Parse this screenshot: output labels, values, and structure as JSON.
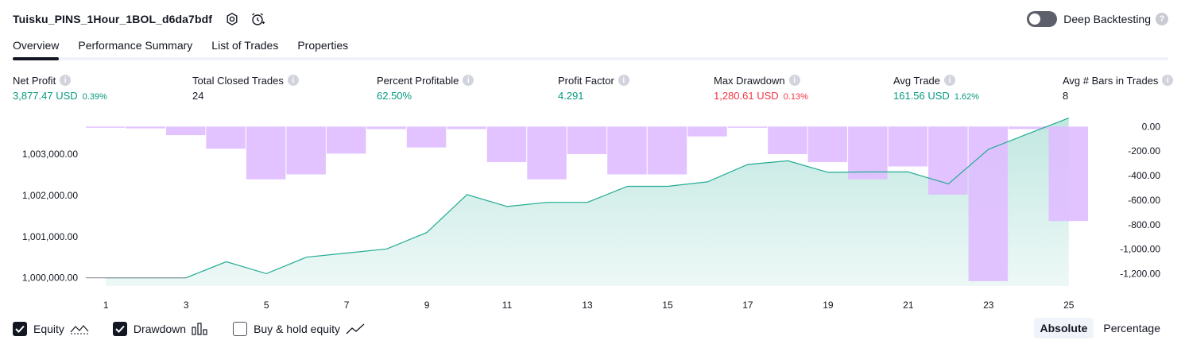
{
  "header": {
    "strategy_title": "Tuisku_PINS_1Hour_1BOL_d6da7bdf",
    "settings_icon": "gear-icon",
    "alert_icon": "alarm-clock-plus-icon"
  },
  "deep_backtesting": {
    "label": "Deep Backtesting",
    "enabled": false,
    "help_icon": "question-icon"
  },
  "tabs": [
    {
      "label": "Overview",
      "active": true
    },
    {
      "label": "Performance Summary",
      "active": false
    },
    {
      "label": "List of Trades",
      "active": false
    },
    {
      "label": "Properties",
      "active": false
    }
  ],
  "metrics": [
    {
      "label": "Net Profit",
      "value": "3,877.47 USD",
      "sub": "0.39%",
      "color": "green"
    },
    {
      "label": "Total Closed Trades",
      "value": "24",
      "sub": "",
      "color": "dark"
    },
    {
      "label": "Percent Profitable",
      "value": "62.50%",
      "sub": "",
      "color": "green"
    },
    {
      "label": "Profit Factor",
      "value": "4.291",
      "sub": "",
      "color": "green"
    },
    {
      "label": "Max Drawdown",
      "value": "1,280.61 USD",
      "sub": "0.13%",
      "color": "red"
    },
    {
      "label": "Avg Trade",
      "value": "161.56 USD",
      "sub": "1.62%",
      "color": "green"
    },
    {
      "label": "Avg # Bars in Trades",
      "value": "8",
      "sub": "",
      "color": "dark"
    }
  ],
  "colors": {
    "equity_line": "#22ab94",
    "drawdown_bar": "#dfbdff",
    "positive": "#089981",
    "negative": "#f23645"
  },
  "chart_data": {
    "type": "line+bar",
    "x": [
      1,
      2,
      3,
      4,
      5,
      6,
      7,
      8,
      9,
      10,
      11,
      12,
      13,
      14,
      15,
      16,
      17,
      18,
      19,
      20,
      21,
      22,
      23,
      24,
      25
    ],
    "x_tick_labels": [
      "1",
      "3",
      "5",
      "7",
      "9",
      "11",
      "13",
      "15",
      "17",
      "19",
      "21",
      "23",
      "25"
    ],
    "series": [
      {
        "type": "area",
        "axis": "left",
        "values": [
          1000000,
          1000000,
          1000000,
          1000390,
          1000100,
          1000500,
          1000600,
          1000700,
          1001100,
          1002020,
          1001730,
          1001830,
          1001830,
          1002220,
          1002220,
          1002330,
          1002750,
          1002840,
          1002560,
          1002570,
          1002570,
          1002280,
          1003120,
          1003500,
          1003877.47
        ]
      },
      {
        "type": "bar",
        "axis": "right",
        "values": [
          -10,
          -15,
          -70,
          -180,
          -430,
          -390,
          -220,
          -20,
          -170,
          -20,
          -290,
          -430,
          -225,
          -390,
          -390,
          -80,
          -10,
          -225,
          -290,
          -430,
          -325,
          -555,
          -1260,
          -20,
          -770
        ]
      }
    ],
    "left_axis": {
      "ylim": [
        999800,
        1003850
      ],
      "ticks": [
        1000000,
        1001000,
        1002000,
        1003000
      ],
      "tick_labels": [
        "1,000,000.00",
        "1,001,000.00",
        "1,002,000.00",
        "1,003,000.00"
      ]
    },
    "right_axis": {
      "ylim": [
        -1300,
        60
      ],
      "ticks": [
        0,
        -200,
        -400,
        -600,
        -800,
        -1000,
        -1200
      ],
      "tick_labels": [
        "0.00",
        "-200.00",
        "-400.00",
        "-600.00",
        "-800.00",
        "-1,000.00",
        "-1,200.00"
      ]
    }
  },
  "legend": [
    {
      "label": "Equity",
      "checked": true,
      "icon": "equity-line-icon"
    },
    {
      "label": "Drawdown",
      "checked": true,
      "icon": "drawdown-bars-icon"
    },
    {
      "label": "Buy & hold equity",
      "checked": false,
      "icon": "buy-hold-line-icon"
    }
  ],
  "modes": [
    {
      "label": "Absolute",
      "active": true
    },
    {
      "label": "Percentage",
      "active": false
    }
  ]
}
